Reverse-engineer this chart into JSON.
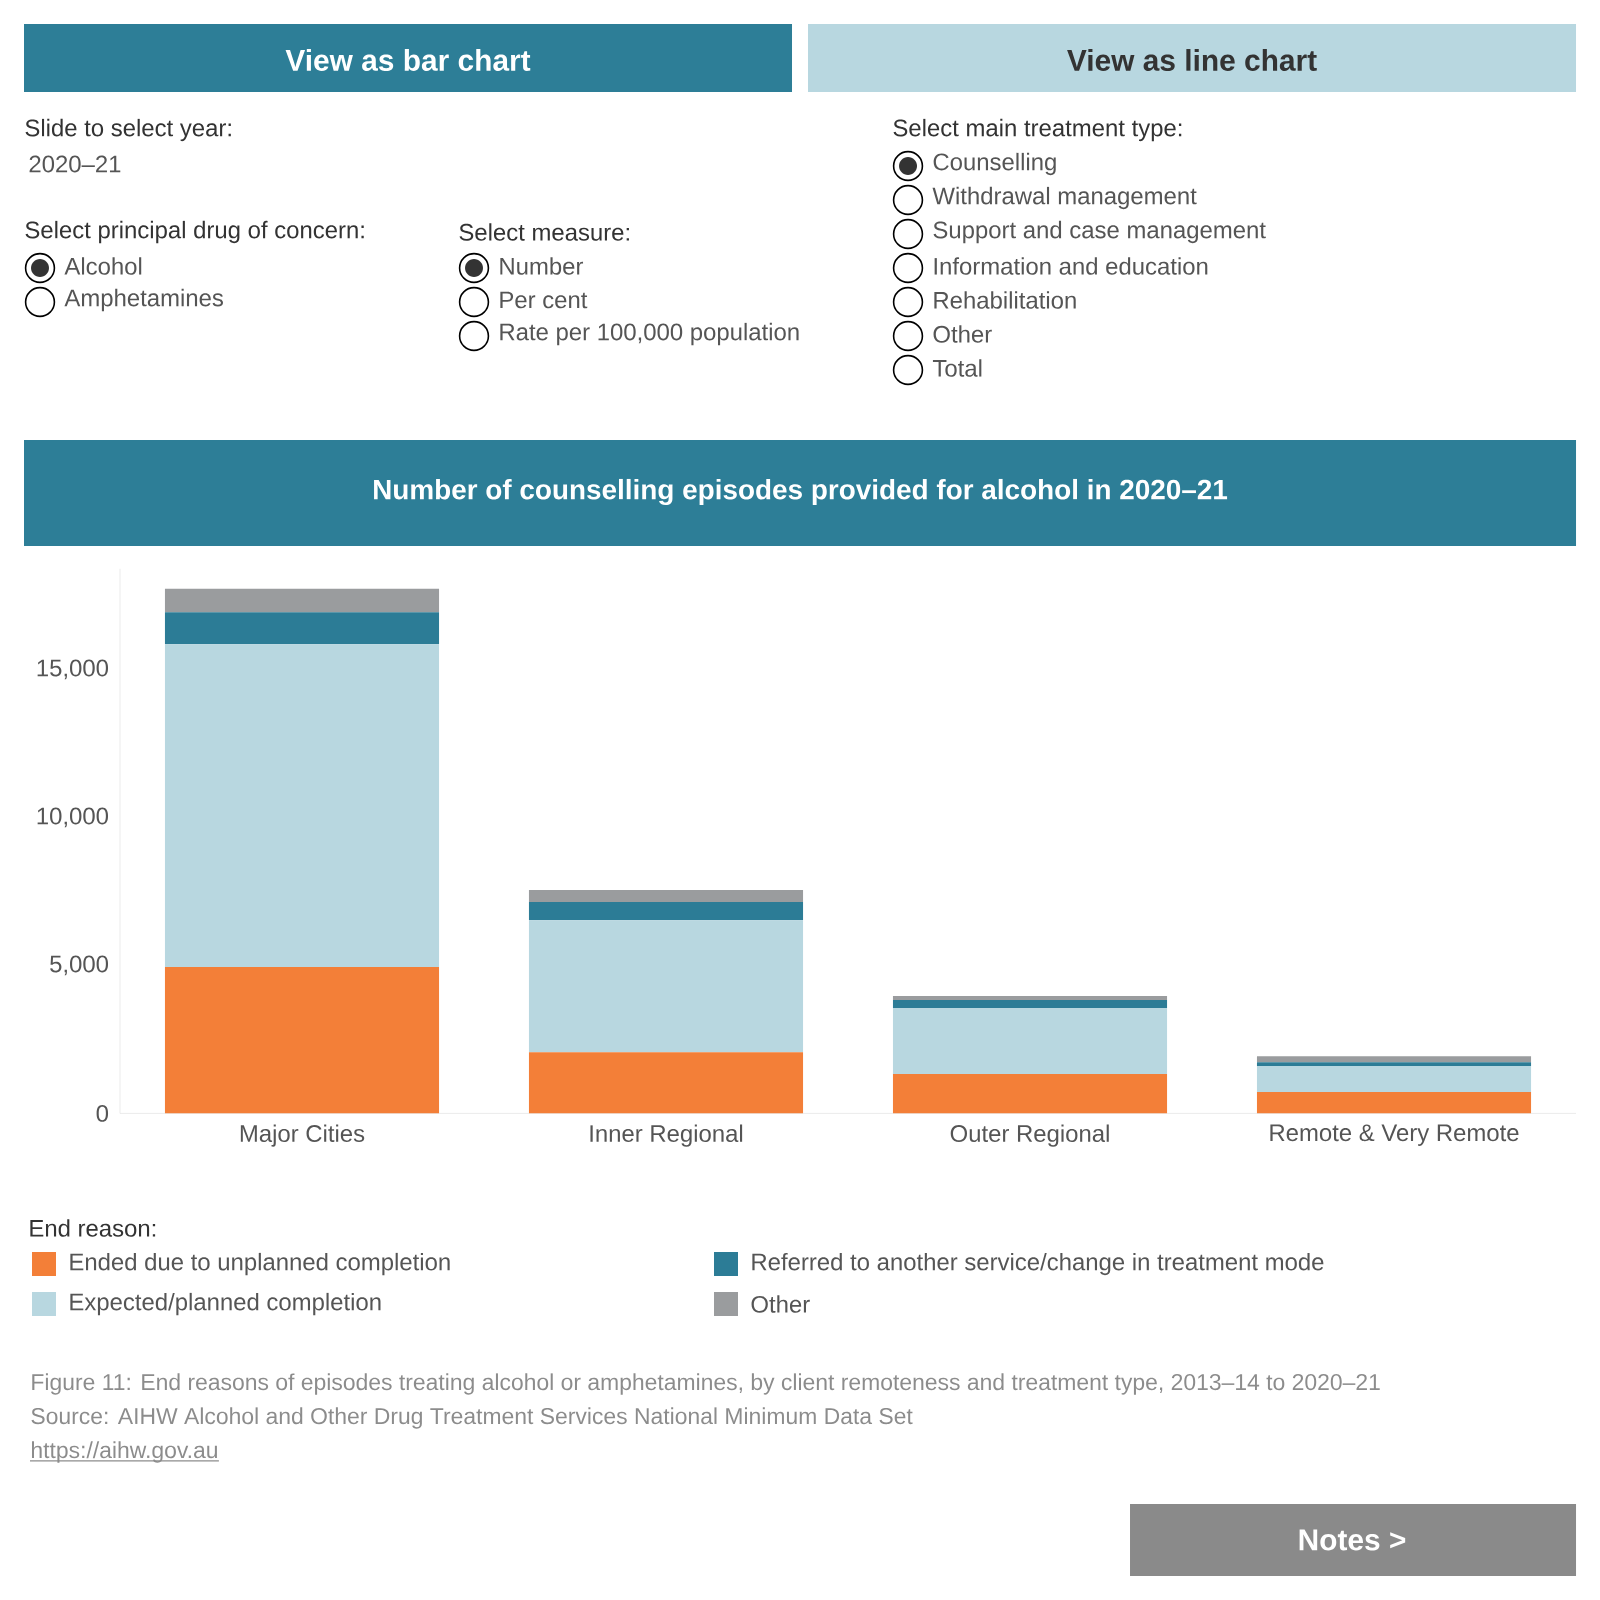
{
  "chart_data": {
    "type": "bar",
    "stacked": true,
    "title": "Number of counselling episodes provided for alcohol in  2020–21",
    "categories": [
      "Major Cities",
      "Inner Regional",
      "Outer Regional",
      "Remote & Very Remote"
    ],
    "series": [
      {
        "name": "Ended due to unplanned completion",
        "color": "#f37f38",
        "values": [
          4950,
          2070,
          1330,
          720
        ]
      },
      {
        "name": "Expected/planned completion",
        "color": "#b8d7e0",
        "values": [
          10900,
          4460,
          2230,
          880
        ]
      },
      {
        "name": "Referred to another service/change in treatment mode",
        "color": "#2c7c96",
        "values": [
          1080,
          610,
          270,
          130
        ]
      },
      {
        "name": "Other",
        "color": "#9a9c9e",
        "values": [
          800,
          410,
          140,
          200
        ]
      }
    ],
    "ylim": [
      0,
      18400
    ],
    "yticks": [
      {
        "value": 0,
        "label": "0"
      },
      {
        "value": 5000,
        "label": "5,000"
      },
      {
        "value": 10000,
        "label": "10,000"
      },
      {
        "value": 15000,
        "label": "15,000"
      }
    ],
    "legend": "bottom",
    "legend_title": "End reason:",
    "annotations": [
      "View as bar chart",
      "View as line chart",
      "Slide to select year:",
      "2020–21",
      "Select principal drug of concern:",
      "Alcohol",
      "Amphetamines",
      "Select measure:",
      "Number",
      "Per cent",
      "Rate per 100,000 population",
      "Select main treatment type:",
      "Counselling",
      "Withdrawal management",
      "Support and case management",
      "Information and education",
      "Rehabilitation",
      "Other",
      "Total",
      "Figure 11: End reasons of episodes treating alcohol or amphetamines, by client remoteness and treatment type, 2013–14 to 2020–21",
      "Source: AIHW Alcohol and Other Drug Treatment Services National Minimum Data Set",
      "https://aihw.gov.au",
      "Notes >"
    ]
  }
}
